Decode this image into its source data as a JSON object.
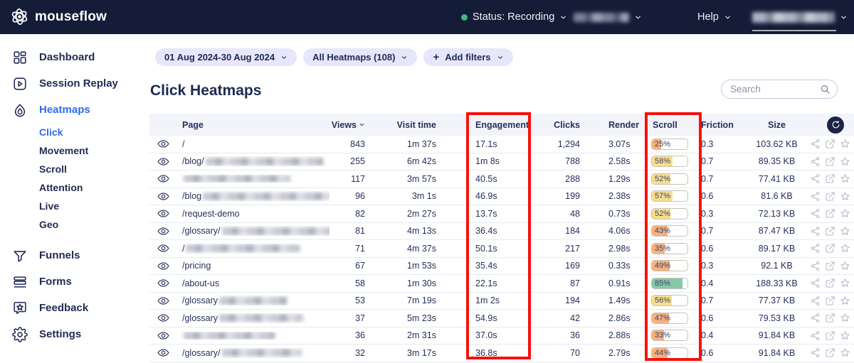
{
  "navbar": {
    "brand": "mouseflow",
    "status_label": "Status: Recording",
    "help_label": "Help",
    "status_color": "#3cba83"
  },
  "sidebar": {
    "items": [
      {
        "label": "Dashboard"
      },
      {
        "label": "Session Replay"
      },
      {
        "label": "Heatmaps",
        "active": true
      },
      {
        "label": "Funnels"
      },
      {
        "label": "Forms"
      },
      {
        "label": "Feedback"
      },
      {
        "label": "Settings"
      }
    ],
    "heatmap_children": [
      {
        "label": "Click",
        "active": true
      },
      {
        "label": "Movement"
      },
      {
        "label": "Scroll"
      },
      {
        "label": "Attention"
      },
      {
        "label": "Live"
      },
      {
        "label": "Geo"
      }
    ]
  },
  "filters": {
    "date_range": "01 Aug 2024-30 Aug 2024",
    "heatmaps_dropdown": "All Heatmaps (108)",
    "add_filters": "Add filters"
  },
  "page": {
    "title": "Click Heatmaps",
    "search_placeholder": "Search"
  },
  "table": {
    "columns": {
      "page": "Page",
      "views": "Views",
      "visit_time": "Visit time",
      "engagement": "Engagement",
      "clicks": "Clicks",
      "render": "Render",
      "scroll": "Scroll",
      "friction": "Friction",
      "size": "Size"
    },
    "rows": [
      {
        "path": "/",
        "blur": 0,
        "views": "843",
        "visit": "1m 37s",
        "engagement": "17.1s",
        "clicks": "1,294",
        "render": "3.07s",
        "scroll": 25,
        "scroll_color": "orange",
        "friction": "0.3",
        "size": "103.62 KB"
      },
      {
        "path": "/blog/",
        "blur": 165,
        "views": "255",
        "visit": "6m 42s",
        "engagement": "1m 8s",
        "clicks": "788",
        "render": "2.58s",
        "scroll": 58,
        "scroll_color": "yellow",
        "friction": "0.7",
        "size": "89.35 KB"
      },
      {
        "path": "",
        "blur": 150,
        "views": "117",
        "visit": "3m 57s",
        "engagement": "40.5s",
        "clicks": "288",
        "render": "1.29s",
        "scroll": 52,
        "scroll_color": "yellow",
        "friction": "0.7",
        "size": "77.41 KB"
      },
      {
        "path": "/blog",
        "blur": 180,
        "views": "96",
        "visit": "3m 1s",
        "engagement": "46.9s",
        "clicks": "199",
        "render": "2.38s",
        "scroll": 57,
        "scroll_color": "yellow",
        "friction": "0.6",
        "size": "81.6 KB"
      },
      {
        "path": "/request-demo",
        "blur": 0,
        "views": "82",
        "visit": "2m 27s",
        "engagement": "13.7s",
        "clicks": "48",
        "render": "0.73s",
        "scroll": 52,
        "scroll_color": "yellow",
        "friction": "0.3",
        "size": "72.13 KB"
      },
      {
        "path": "/glossary/",
        "blur": 165,
        "views": "81",
        "visit": "4m 13s",
        "engagement": "36.4s",
        "clicks": "184",
        "render": "4.06s",
        "scroll": 43,
        "scroll_color": "orange",
        "friction": "0.7",
        "size": "87.47 KB"
      },
      {
        "path": "/",
        "blur": 160,
        "views": "71",
        "visit": "4m 37s",
        "engagement": "50.1s",
        "clicks": "217",
        "render": "2.98s",
        "scroll": 35,
        "scroll_color": "orange",
        "friction": "0.6",
        "size": "89.17 KB"
      },
      {
        "path": "/pricing",
        "blur": 0,
        "views": "67",
        "visit": "1m 53s",
        "engagement": "35.4s",
        "clicks": "169",
        "render": "0.33s",
        "scroll": 49,
        "scroll_color": "orange",
        "friction": "0.3",
        "size": "92.1 KB"
      },
      {
        "path": "/about-us",
        "blur": 0,
        "views": "58",
        "visit": "1m 30s",
        "engagement": "22.1s",
        "clicks": "87",
        "render": "0.91s",
        "scroll": 85,
        "scroll_color": "green",
        "friction": "0.4",
        "size": "188.33 KB"
      },
      {
        "path": "/glossary",
        "blur": 95,
        "views": "53",
        "visit": "7m 19s",
        "engagement": "1m 2s",
        "clicks": "194",
        "render": "1.49s",
        "scroll": 56,
        "scroll_color": "yellow",
        "friction": "0.7",
        "size": "77.37 KB"
      },
      {
        "path": "/glossary",
        "blur": 118,
        "views": "37",
        "visit": "5m 23s",
        "engagement": "54.9s",
        "clicks": "42",
        "render": "2.86s",
        "scroll": 47,
        "scroll_color": "orange",
        "friction": "0.6",
        "size": "79.53 KB"
      },
      {
        "path": "",
        "blur": 128,
        "views": "36",
        "visit": "2m 31s",
        "engagement": "37.0s",
        "clicks": "36",
        "render": "2.88s",
        "scroll": 33,
        "scroll_color": "orange",
        "friction": "0.4",
        "size": "91.84 KB"
      },
      {
        "path": "/glossary/",
        "blur": 112,
        "views": "32",
        "visit": "3m 17s",
        "engagement": "36.8s",
        "clicks": "70",
        "render": "2.79s",
        "scroll": 44,
        "scroll_color": "orange",
        "friction": "0.6",
        "size": "91.84 KB"
      }
    ]
  },
  "colors": {
    "orange": "#f5b17e",
    "yellow": "#f8dd8e",
    "green": "#85c9a6",
    "highlight_red": "#f5120d"
  }
}
